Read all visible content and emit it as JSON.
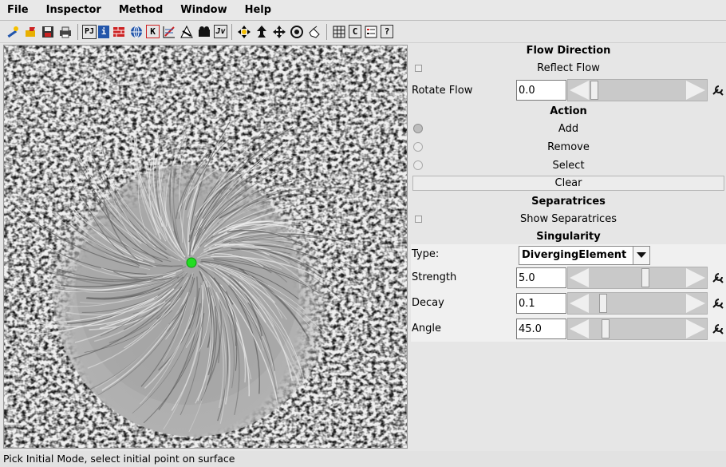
{
  "menu": [
    "File",
    "Inspector",
    "Method",
    "Window",
    "Help"
  ],
  "toolbar": {
    "group1": [
      "wand-icon",
      "open-icon",
      "save-icon",
      "print-icon"
    ],
    "group2": [
      {
        "icon": "pj-icon",
        "text": "PJ"
      },
      {
        "icon": "info-icon",
        "text": "i"
      },
      {
        "icon": "brick-icon",
        "text": ""
      },
      {
        "icon": "globe-icon",
        "text": ""
      },
      {
        "icon": "k-icon",
        "text": "K"
      },
      {
        "icon": "grid-flow-icon",
        "text": ""
      },
      {
        "icon": "triangle-icon",
        "text": ""
      },
      {
        "icon": "camera-icon",
        "text": ""
      },
      {
        "icon": "jv-icon",
        "text": "Jv"
      }
    ],
    "group3": [
      "pick-icon",
      "rotate-icon",
      "move-icon",
      "target-icon",
      "hand-icon"
    ],
    "group4": [
      {
        "icon": "grid-icon",
        "text": ""
      },
      {
        "icon": "c-icon",
        "text": "C"
      },
      {
        "icon": "list-icon",
        "text": ""
      },
      {
        "icon": "help-icon",
        "text": "?"
      }
    ]
  },
  "panel": {
    "flow_direction": {
      "title": "Flow Direction",
      "reflect_label": "Reflect Flow",
      "rotate_label": "Rotate Flow",
      "rotate_value": "0.0",
      "rotate_slider": 0.0
    },
    "action": {
      "title": "Action",
      "options": [
        "Add",
        "Remove",
        "Select"
      ],
      "selected": "Add",
      "clear_label": "Clear"
    },
    "separatrices": {
      "title": "Separatrices",
      "show_label": "Show Separatrices"
    },
    "singularity": {
      "title": "Singularity",
      "type_label": "Type:",
      "type_value": "DivergingElement",
      "strength_label": "Strength",
      "strength_value": "5.0",
      "strength_slider": 0.58,
      "decay_label": "Decay",
      "decay_value": "0.1",
      "decay_slider": 0.1,
      "angle_label": "Angle",
      "angle_value": "45.0",
      "angle_slider": 0.125
    }
  },
  "colors": {
    "singularity_point": "#22dd22"
  },
  "status": "Pick Initial Mode, select initial point on surface"
}
